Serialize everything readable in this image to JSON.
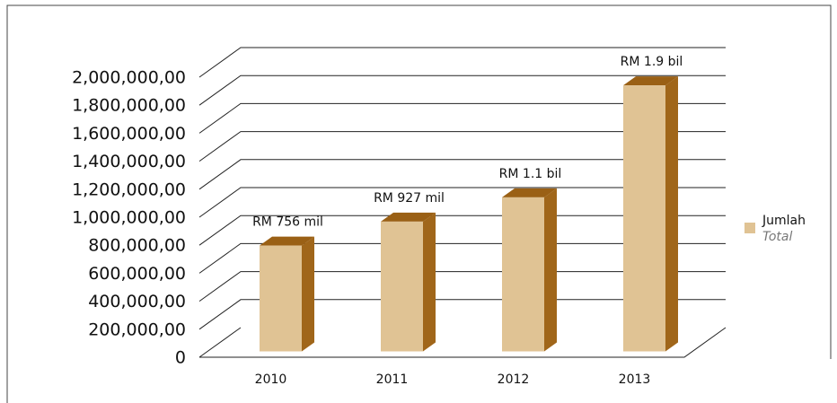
{
  "chart_data": {
    "type": "bar3d",
    "categories": [
      "2010",
      "2011",
      "2012",
      "2013"
    ],
    "series": [
      {
        "name": "Jumlah",
        "color": "#e0c394",
        "values": [
          756000,
          927000,
          1100000,
          1900000
        ],
        "value_labels": [
          "RM 756 mil",
          "RM 927 mil",
          "RM 1.1 bil",
          "RM 1.9 bil"
        ]
      }
    ],
    "legend_subtext": "Total",
    "ylim": [
      0,
      2000000
    ],
    "yticks": [
      0,
      {
        "value": 200000,
        "label": "200,000,00"
      },
      {
        "value": 400000,
        "label": "400,000,00"
      },
      {
        "value": 600000,
        "label": "600,000,00"
      },
      {
        "value": 800000,
        "label": "800,000,00"
      },
      {
        "value": 1000000,
        "label": "1,000,000,00"
      },
      {
        "value": 1200000,
        "label": "1,200,000,00"
      },
      {
        "value": 1400000,
        "label": "1,400,000,00"
      },
      {
        "value": 1600000,
        "label": "1,600,000,00"
      },
      {
        "value": 1800000,
        "label": "1,800,000,00"
      },
      {
        "value": 2000000,
        "label": "2,000,000,00"
      }
    ],
    "grid": true,
    "legend": "right"
  }
}
